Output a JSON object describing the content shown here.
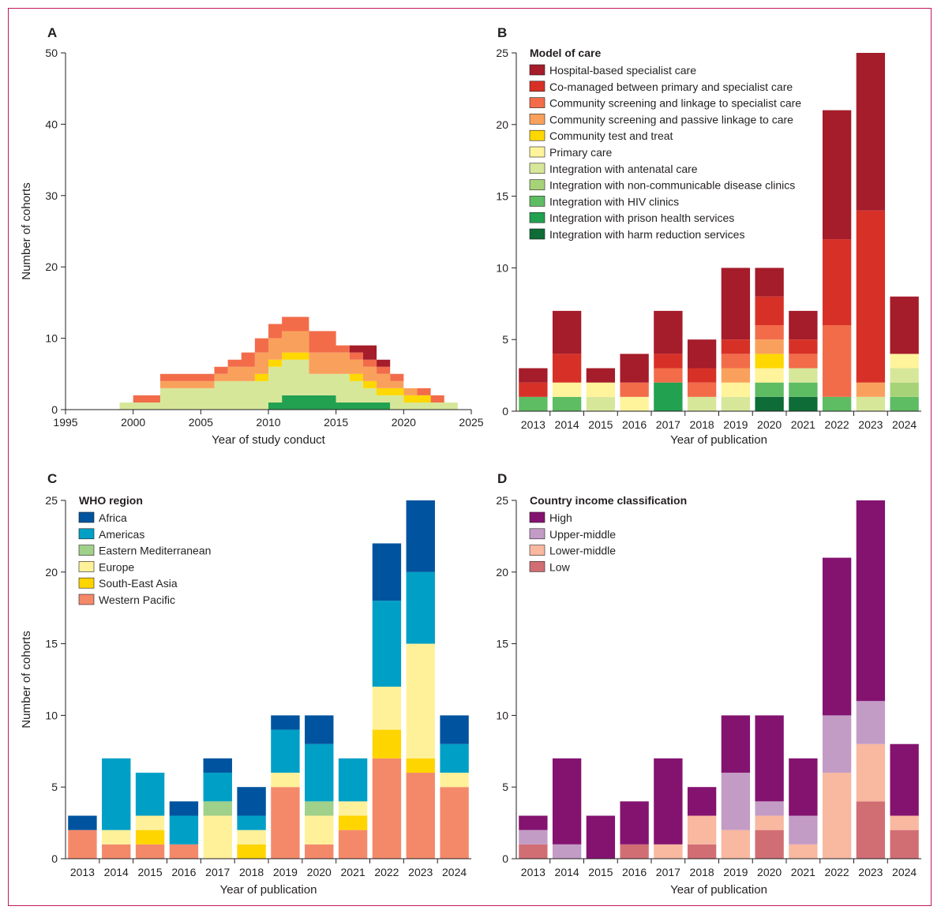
{
  "colors": {
    "care": [
      "#a51c2a",
      "#d73127",
      "#f26c4a",
      "#f9a15c",
      "#fed800",
      "#fff39b",
      "#d7e79a",
      "#a7d378",
      "#5ebc63",
      "#22a151",
      "#0e6c36"
    ],
    "who": [
      "#00549f",
      "#00a0c6",
      "#a0d18b",
      "#fff19a",
      "#ffd500",
      "#f4896a"
    ],
    "income": [
      "#841370",
      "#c39cc6",
      "#f9b8a0",
      "#d16e74"
    ]
  },
  "chart_data": [
    {
      "panel": "A",
      "type": "area",
      "xlabel": "Year of study conduct",
      "ylabel": "Number of cohorts",
      "xlim": [
        1995,
        2025
      ],
      "ylim": [
        0,
        50
      ],
      "x_ticks": [
        "1995",
        "2000",
        "2005",
        "2010",
        "2015",
        "2020",
        "2025"
      ],
      "y_ticks": [
        "0",
        "10",
        "20",
        "30",
        "40",
        "50"
      ],
      "x": [
        1996,
        1997,
        1998,
        1999,
        2000,
        2001,
        2002,
        2003,
        2004,
        2005,
        2006,
        2007,
        2008,
        2009,
        2010,
        2011,
        2012,
        2013,
        2014,
        2015,
        2016,
        2017,
        2018,
        2019,
        2020,
        2021,
        2022,
        2023
      ],
      "series": [
        {
          "values": [
            0,
            0,
            0,
            0,
            0,
            0,
            0,
            0,
            0,
            0,
            0,
            0,
            0,
            0,
            0,
            0,
            0,
            0,
            0,
            0,
            1,
            2,
            1,
            0,
            0,
            0,
            0,
            0
          ]
        },
        {
          "values": [
            0,
            0,
            0,
            0,
            0,
            0,
            0,
            0,
            0,
            0,
            0,
            0,
            0,
            0,
            0,
            0,
            0,
            0,
            0,
            0,
            0,
            0,
            0,
            0,
            0,
            0,
            0,
            0
          ]
        },
        {
          "values": [
            0,
            0,
            0,
            0,
            1,
            1,
            1,
            1,
            1,
            1,
            1,
            1,
            2,
            2,
            2,
            2,
            2,
            3,
            3,
            1,
            1,
            1,
            1,
            1,
            0,
            1,
            1,
            0
          ]
        },
        {
          "values": [
            0,
            0,
            0,
            0,
            0,
            0,
            1,
            1,
            1,
            1,
            1,
            2,
            2,
            3,
            3,
            3,
            3,
            3,
            3,
            3,
            2,
            2,
            2,
            1,
            1,
            0,
            0,
            0
          ]
        },
        {
          "values": [
            0,
            0,
            0,
            0,
            0,
            0,
            0,
            0,
            0,
            0,
            0,
            0,
            0,
            1,
            1,
            1,
            1,
            0,
            0,
            0,
            1,
            1,
            1,
            1,
            1,
            1,
            0,
            0
          ]
        },
        {
          "values": [
            0,
            0,
            0,
            0,
            0,
            0,
            0,
            0,
            0,
            0,
            0,
            0,
            0,
            0,
            0,
            0,
            0,
            0,
            0,
            0,
            0,
            0,
            0,
            0,
            0,
            0,
            0,
            0
          ]
        },
        {
          "values": [
            0,
            0,
            0,
            1,
            1,
            1,
            3,
            3,
            3,
            3,
            4,
            4,
            4,
            4,
            5,
            5,
            5,
            3,
            3,
            4,
            3,
            2,
            1,
            2,
            1,
            1,
            1,
            1
          ]
        },
        {
          "values": [
            0,
            0,
            0,
            0,
            0,
            0,
            0,
            0,
            0,
            0,
            0,
            0,
            0,
            0,
            0,
            0,
            0,
            0,
            0,
            0,
            0,
            0,
            0,
            0,
            0,
            0,
            0,
            0
          ]
        },
        {
          "values": [
            0,
            0,
            0,
            0,
            0,
            0,
            0,
            0,
            0,
            0,
            0,
            0,
            0,
            0,
            0,
            0,
            0,
            0,
            0,
            0,
            0,
            0,
            0,
            0,
            0,
            0,
            0,
            0
          ]
        },
        {
          "values": [
            0,
            0,
            0,
            0,
            0,
            0,
            0,
            0,
            0,
            0,
            0,
            0,
            0,
            0,
            1,
            2,
            2,
            2,
            2,
            1,
            1,
            1,
            1,
            0,
            0,
            0,
            0,
            0
          ]
        },
        {
          "values": [
            0,
            0,
            0,
            0,
            0,
            0,
            0,
            0,
            0,
            0,
            0,
            0,
            0,
            0,
            0,
            0,
            0,
            0,
            0,
            0,
            0,
            0,
            0,
            0,
            0,
            0,
            0,
            0
          ]
        }
      ],
      "series_order_bottom_to_top": [
        10,
        9,
        8,
        7,
        6,
        5,
        4,
        3,
        2,
        1,
        0
      ]
    },
    {
      "panel": "B",
      "type": "bar",
      "stacked": true,
      "xlabel": "Year of publication",
      "ylabel": "",
      "ylim": [
        0,
        25
      ],
      "y_ticks": [
        "0",
        "5",
        "10",
        "15",
        "20",
        "25"
      ],
      "categories": [
        "2013",
        "2014",
        "2015",
        "2016",
        "2017",
        "2018",
        "2019",
        "2020",
        "2021",
        "2022",
        "2023",
        "2024"
      ],
      "legend_title": "Model of care",
      "series": [
        {
          "name": "Hospital-based specialist care",
          "values": [
            1,
            3,
            1,
            2,
            3,
            2,
            5,
            2,
            2,
            9,
            11,
            4
          ]
        },
        {
          "name": "Co-managed between primary and specialist care",
          "values": [
            1,
            2,
            0,
            0,
            1,
            1,
            1,
            2,
            1,
            6,
            12,
            0
          ]
        },
        {
          "name": "Community screening and linkage to specialist care",
          "values": [
            0,
            0,
            0,
            1,
            1,
            1,
            1,
            1,
            1,
            5,
            0,
            0
          ]
        },
        {
          "name": "Community screening and passive linkage to care",
          "values": [
            0,
            0,
            0,
            0,
            0,
            0,
            1,
            1,
            0,
            0,
            1,
            0
          ]
        },
        {
          "name": "Community test and treat",
          "values": [
            0,
            0,
            0,
            0,
            0,
            0,
            0,
            1,
            0,
            0,
            0,
            0
          ]
        },
        {
          "name": "Primary care",
          "values": [
            0,
            1,
            1,
            1,
            0,
            0,
            1,
            1,
            0,
            0,
            0,
            1
          ]
        },
        {
          "name": "Integration with antenatal care",
          "values": [
            0,
            0,
            1,
            0,
            0,
            1,
            1,
            0,
            1,
            0,
            1,
            1
          ]
        },
        {
          "name": "Integration with non-communicable disease clinics",
          "values": [
            0,
            0,
            0,
            0,
            0,
            0,
            0,
            0,
            0,
            0,
            0,
            1
          ]
        },
        {
          "name": "Integration with HIV clinics",
          "values": [
            1,
            1,
            0,
            0,
            0,
            0,
            0,
            1,
            1,
            1,
            0,
            1
          ]
        },
        {
          "name": "Integration with prison health services",
          "values": [
            0,
            0,
            0,
            0,
            2,
            0,
            0,
            0,
            0,
            0,
            0,
            0
          ]
        },
        {
          "name": "Integration with harm reduction services",
          "values": [
            0,
            0,
            0,
            0,
            0,
            0,
            0,
            1,
            1,
            0,
            0,
            0
          ]
        }
      ]
    },
    {
      "panel": "C",
      "type": "bar",
      "stacked": true,
      "xlabel": "Year of publication",
      "ylabel": "Number of cohorts",
      "ylim": [
        0,
        25
      ],
      "y_ticks": [
        "0",
        "5",
        "10",
        "15",
        "20",
        "25"
      ],
      "categories": [
        "2013",
        "2014",
        "2015",
        "2016",
        "2017",
        "2018",
        "2019",
        "2020",
        "2021",
        "2022",
        "2023",
        "2024"
      ],
      "legend_title": "WHO region",
      "series": [
        {
          "name": "Africa",
          "values": [
            1,
            0,
            0,
            1,
            1,
            2,
            1,
            2,
            0,
            4,
            5,
            2
          ]
        },
        {
          "name": "Americas",
          "values": [
            0,
            5,
            3,
            2,
            2,
            1,
            3,
            4,
            3,
            6,
            5,
            2
          ]
        },
        {
          "name": "Eastern Mediterranean",
          "values": [
            0,
            0,
            0,
            0,
            1,
            0,
            0,
            1,
            0,
            0,
            0,
            0
          ]
        },
        {
          "name": "Europe",
          "values": [
            0,
            1,
            1,
            0,
            3,
            1,
            1,
            2,
            1,
            3,
            8,
            1
          ]
        },
        {
          "name": "South-East Asia",
          "values": [
            0,
            0,
            1,
            0,
            0,
            1,
            0,
            0,
            1,
            2,
            1,
            0
          ]
        },
        {
          "name": "Western Pacific",
          "values": [
            2,
            1,
            1,
            1,
            0,
            0,
            5,
            1,
            2,
            7,
            6,
            5
          ]
        }
      ]
    },
    {
      "panel": "D",
      "type": "bar",
      "stacked": true,
      "xlabel": "Year of publication",
      "ylabel": "",
      "ylim": [
        0,
        25
      ],
      "y_ticks": [
        "0",
        "5",
        "10",
        "15",
        "20",
        "25"
      ],
      "categories": [
        "2013",
        "2014",
        "2015",
        "2016",
        "2017",
        "2018",
        "2019",
        "2020",
        "2021",
        "2022",
        "2023",
        "2024"
      ],
      "legend_title": "Country income classification",
      "series": [
        {
          "name": "High",
          "values": [
            1,
            6,
            3,
            3,
            6,
            2,
            4,
            6,
            4,
            11,
            14,
            5
          ]
        },
        {
          "name": "Upper-middle",
          "values": [
            1,
            1,
            0,
            0,
            0,
            0,
            4,
            1,
            2,
            4,
            3,
            0
          ]
        },
        {
          "name": "Lower-middle",
          "values": [
            0,
            0,
            0,
            0,
            1,
            2,
            2,
            1,
            1,
            6,
            4,
            1
          ]
        },
        {
          "name": "Low",
          "values": [
            1,
            0,
            0,
            1,
            0,
            1,
            0,
            2,
            0,
            0,
            4,
            2
          ]
        }
      ]
    }
  ]
}
